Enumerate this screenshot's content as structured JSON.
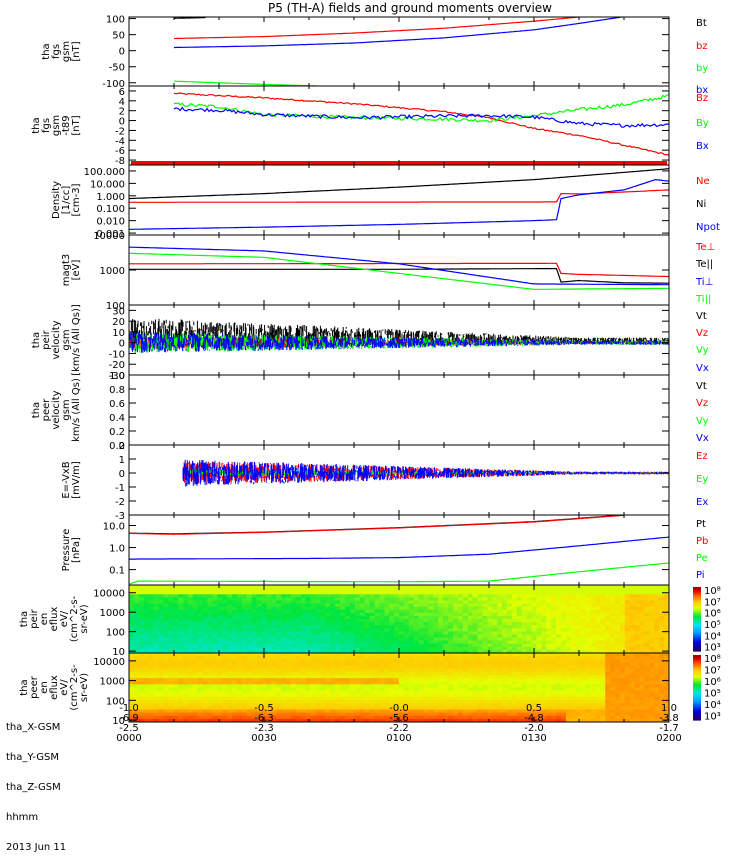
{
  "chart_data": {
    "type": "line",
    "title": "P5 (TH-A) fields and ground moments overview",
    "x": {
      "tick_labels_hhmm": [
        "0000",
        "0030",
        "0100",
        "0130",
        "0200"
      ],
      "range_minutes": [
        0,
        120
      ],
      "date": "2013 Jun 11"
    },
    "ephemeris": {
      "rows": [
        {
          "label": "tha_X-GSM",
          "values": [
            "-1.0",
            "-0.5",
            "-0.0",
            "0.5",
            "1.0"
          ]
        },
        {
          "label": "tha_Y-GSM",
          "values": [
            "-6.9",
            "-6.3",
            "-5.6",
            "-4.8",
            "-3.8"
          ]
        },
        {
          "label": "tha_Z-GSM",
          "values": [
            "-2.5",
            "-2.3",
            "-2.2",
            "-2.0",
            "-1.7"
          ]
        },
        {
          "label": "hhmm",
          "values": [
            "0000",
            "0030",
            "0100",
            "0130",
            "0200"
          ]
        }
      ]
    },
    "panels": [
      {
        "id": "fgs",
        "ylabel": [
          "tha",
          "fgs",
          "gsm",
          "[nT]"
        ],
        "scale": "linear",
        "ylim": [
          -110,
          105
        ],
        "ticks": [
          "100",
          "50",
          "0",
          "-50",
          "-100"
        ],
        "tick_values": [
          100,
          50,
          0,
          -50,
          -100
        ],
        "series": [
          {
            "name": "Bt",
            "color": "#000000",
            "t": [
              10,
              17
            ],
            "values": [
              101,
              103
            ]
          },
          {
            "name": "bz",
            "color": "#ff0000",
            "t": [
              10,
              30,
              50,
              70,
              90,
              100
            ],
            "values": [
              38,
              44,
              55,
              70,
              92,
              105
            ]
          },
          {
            "name": "by",
            "color": "#00ff00",
            "t": [
              10,
              20,
              30,
              42
            ],
            "values": [
              -95,
              -100,
              -105,
              -110
            ]
          },
          {
            "name": "bx",
            "color": "#0000ff",
            "t": [
              10,
              30,
              50,
              70,
              90,
              100,
              110
            ],
            "values": [
              10,
              15,
              24,
              40,
              65,
              85,
              106
            ]
          }
        ]
      },
      {
        "id": "fgm",
        "ylabel": [
          "tha",
          "fgs",
          "gsm",
          "-t89",
          "[nT]"
        ],
        "scale": "linear",
        "ylim": [
          -9,
          7
        ],
        "ticks": [
          "6",
          "4",
          "2",
          "0",
          "-2",
          "-4",
          "-6",
          "-8"
        ],
        "tick_values": [
          6,
          4,
          2,
          0,
          -2,
          -4,
          -6,
          -8
        ],
        "series": [
          {
            "name": "Bz",
            "color": "#ff0000",
            "t": [
              10,
              30,
              50,
              70,
              80,
              90,
              100,
              110,
              120
            ],
            "values": [
              5.5,
              4.6,
              3.4,
              1.8,
              0.6,
              -1.6,
              -3.0,
              -5.0,
              -7.0
            ],
            "noise": 0.15
          },
          {
            "name": "By",
            "color": "#00ff00",
            "t": [
              10,
              20,
              30,
              50,
              70,
              80,
              90,
              100,
              110,
              120
            ],
            "values": [
              3.3,
              2.8,
              1.2,
              0.6,
              0.3,
              0.0,
              1.0,
              2.2,
              3.2,
              5.0
            ],
            "noise": 0.35
          },
          {
            "name": "Bx",
            "color": "#0000ff",
            "t": [
              10,
              20,
              30,
              50,
              70,
              80,
              90,
              100,
              110,
              120
            ],
            "values": [
              2.4,
              2.1,
              1.2,
              0.6,
              0.9,
              1.0,
              0.7,
              -0.6,
              -1.0,
              -0.8
            ],
            "noise": 0.35
          }
        ]
      },
      {
        "id": "density",
        "ylabel": [
          "Density",
          "[1/cc]",
          "[cm-3]"
        ],
        "scale": "log",
        "ylim": [
          0.0007,
          300
        ],
        "ticks": [
          "100.000",
          "10.000",
          "1.000",
          "0.100",
          "0.010",
          "0.001"
        ],
        "tick_values": [
          100,
          10,
          1,
          0.1,
          0.01,
          0.001
        ],
        "series": [
          {
            "name": "Ne",
            "color": "#ff0000",
            "t": [
              0,
              95,
              96,
              100,
              110,
              120
            ],
            "values": [
              0.3,
              0.32,
              1.5,
              1.4,
              2.0,
              3.0
            ]
          },
          {
            "name": "Ni",
            "color": "#000000",
            "t": [
              0,
              30,
              60,
              90,
              120
            ],
            "values": [
              0.6,
              1.5,
              5.0,
              20,
              150
            ]
          },
          {
            "name": "Npot",
            "color": "#0000ff",
            "t": [
              0,
              30,
              60,
              90,
              95,
              96,
              100,
              110,
              117,
              120
            ],
            "values": [
              0.002,
              0.003,
              0.005,
              0.01,
              0.012,
              0.6,
              1.2,
              3.0,
              20,
              15
            ]
          }
        ]
      },
      {
        "id": "temperature",
        "ylabel": [
          "magt3",
          "[eV]"
        ],
        "scale": "log",
        "ylim": [
          100,
          10000
        ],
        "ticks": [
          "10000",
          "1000",
          "100"
        ],
        "tick_values": [
          10000,
          1000,
          100
        ],
        "series": [
          {
            "name": "Te⊥",
            "color": "#ff0000",
            "t": [
              0,
              95,
              96,
              100,
              110,
              120
            ],
            "values": [
              1500,
              1550,
              800,
              750,
              700,
              650
            ]
          },
          {
            "name": "Te||",
            "color": "#000000",
            "t": [
              0,
              60,
              95,
              96,
              100,
              110,
              120
            ],
            "values": [
              1050,
              1050,
              1100,
              450,
              500,
              430,
              420
            ]
          },
          {
            "name": "Ti⊥",
            "color": "#0000ff",
            "t": [
              0,
              30,
              60,
              90,
              120
            ],
            "values": [
              4500,
              3500,
              1500,
              400,
              380
            ]
          },
          {
            "name": "Ti||",
            "color": "#00ff00",
            "t": [
              0,
              30,
              60,
              90,
              120
            ],
            "values": [
              3000,
              2300,
              800,
              280,
              300
            ]
          }
        ]
      },
      {
        "id": "peir_velocity",
        "ylabel": [
          "tha",
          "peir",
          "velocity",
          "gsm",
          "[km/s (All Qs)]"
        ],
        "scale": "linear",
        "ylim": [
          -30,
          35
        ],
        "ticks": [
          "30",
          "20",
          "10",
          "0",
          "-10",
          "-20",
          "-30"
        ],
        "tick_values": [
          30,
          20,
          10,
          0,
          -10,
          -20,
          -30
        ],
        "series": [
          {
            "name": "Vt",
            "color": "#000000",
            "noise_envelope": [
              15,
              3
            ]
          },
          {
            "name": "Vz",
            "color": "#ff0000",
            "noise_envelope": [
              6,
              1.5
            ]
          },
          {
            "name": "Vy",
            "color": "#00ff00",
            "noise_envelope": [
              10,
              2
            ]
          },
          {
            "name": "Vx",
            "color": "#0000ff",
            "noise_envelope": [
              10,
              2
            ]
          }
        ]
      },
      {
        "id": "peer_velocity",
        "ylabel": [
          "tha",
          "peer",
          "velocity",
          "gsm",
          "km/s (All Qs)"
        ],
        "scale": "linear",
        "ylim": [
          0,
          1
        ],
        "ticks": [
          "1.0",
          "0.8",
          "0.6",
          "0.4",
          "0.2",
          "0.0"
        ],
        "tick_values": [
          1.0,
          0.8,
          0.6,
          0.4,
          0.2,
          0.0
        ],
        "series": [
          {
            "name": "Vt",
            "color": "#000000"
          },
          {
            "name": "Vz",
            "color": "#ff0000"
          },
          {
            "name": "Vy",
            "color": "#00ff00"
          },
          {
            "name": "Vx",
            "color": "#0000ff"
          }
        ]
      },
      {
        "id": "efield",
        "ylabel": [
          "E=-VxB",
          "[mV/m]"
        ],
        "scale": "linear",
        "ylim": [
          -3,
          2
        ],
        "ticks": [
          "2",
          "1",
          "0",
          "-1",
          "-2",
          "-3"
        ],
        "tick_values": [
          2,
          1,
          0,
          -1,
          -2,
          -3
        ],
        "series": [
          {
            "name": "Ez",
            "color": "#ff0000",
            "noise_envelope": [
              1.0,
              0.1
            ]
          },
          {
            "name": "Ey",
            "color": "#00ff00",
            "noise_envelope": [
              0.3,
              0.05
            ]
          },
          {
            "name": "Ex",
            "color": "#0000ff",
            "noise_envelope": [
              1.1,
              0.1
            ]
          }
        ]
      },
      {
        "id": "pressure",
        "ylabel": [
          "Pressure",
          "[nPa]"
        ],
        "scale": "log",
        "ylim": [
          0.02,
          30
        ],
        "ticks": [
          "10.0",
          "1.0",
          "0.1"
        ],
        "tick_values": [
          10,
          1,
          0.1
        ],
        "series": [
          {
            "name": "Pt",
            "color": "#000000",
            "t": [
              0,
              10,
              30,
              60,
              90,
              110
            ],
            "values": [
              4.5,
              4.2,
              5,
              8,
              15,
              30
            ]
          },
          {
            "name": "Pb",
            "color": "#ff0000",
            "t": [
              0,
              10,
              30,
              60,
              90,
              110
            ],
            "values": [
              4.4,
              4.0,
              4.9,
              7.8,
              14.5,
              29
            ]
          },
          {
            "name": "Pe",
            "color": "#00ff00",
            "t": [
              0,
              2,
              60,
              80,
              100,
              120
            ],
            "values": [
              0.022,
              0.03,
              0.028,
              0.03,
              0.08,
              0.2
            ]
          },
          {
            "name": "Pi",
            "color": "#0000ff",
            "t": [
              0,
              40,
              60,
              80,
              100,
              120
            ],
            "values": [
              0.3,
              0.32,
              0.35,
              0.5,
              1.2,
              3.0
            ]
          }
        ]
      },
      {
        "id": "peir_en_efflux",
        "type": "heatmap",
        "ylabel": [
          "tha",
          "peir",
          "en",
          "eflux",
          "eV/",
          "(cm^2-s-",
          "sr-eV)"
        ],
        "scale": "log",
        "ylim": [
          8,
          25000
        ],
        "ticks": [
          "10000",
          "1000",
          "100",
          "10"
        ],
        "tick_values": [
          10000,
          1000,
          100,
          10
        ],
        "colorbar": {
          "labels": [
            "10⁸",
            "10⁷",
            "10⁶",
            "10⁵",
            "10⁴",
            "10³"
          ],
          "range_log": [
            3,
            8
          ]
        }
      },
      {
        "id": "peer_en_efflux",
        "type": "heatmap",
        "ylabel": [
          "tha",
          "peer",
          "en",
          "eflux",
          "eV/",
          "(cm^2-s-",
          "sr-eV)"
        ],
        "scale": "log",
        "ylim": [
          8,
          25000
        ],
        "ticks": [
          "10000",
          "1000",
          "100",
          "10"
        ],
        "tick_values": [
          10000,
          1000,
          100,
          10
        ],
        "colorbar": {
          "labels": [
            "10⁸",
            "10⁷",
            "10⁶",
            "10⁵",
            "10⁴",
            "10³"
          ],
          "range_log": [
            3,
            8
          ]
        }
      }
    ]
  },
  "legend_colors": {
    "black": "#000000",
    "red": "#ff0000",
    "green": "#00ff00",
    "blue": "#0000ff"
  }
}
